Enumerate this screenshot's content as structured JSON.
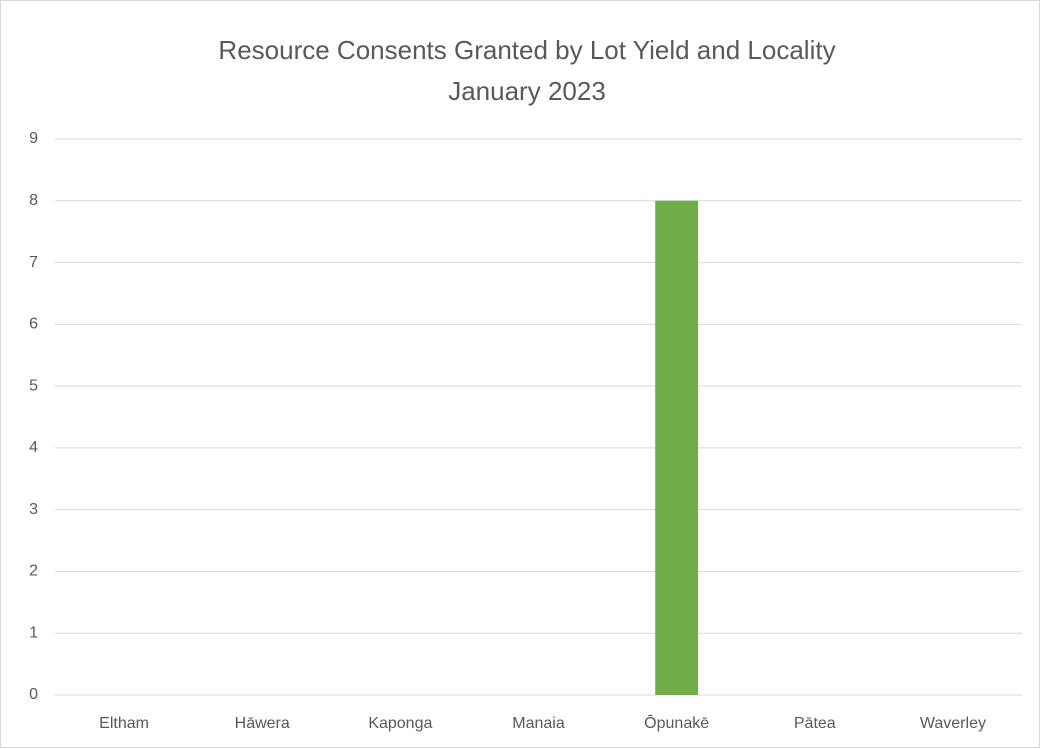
{
  "chart_data": {
    "type": "bar",
    "title": "Resource Consents Granted by Lot Yield and Locality",
    "subtitle": "January 2023",
    "categories": [
      "Eltham",
      "Hāwera",
      "Kaponga",
      "Manaia",
      "Ōpunakē",
      "Pātea",
      "Waverley"
    ],
    "values": [
      0,
      0,
      0,
      0,
      8,
      0,
      0
    ],
    "color": "#70ad47",
    "ylim": [
      0,
      9
    ],
    "yticks": [
      0,
      1,
      2,
      3,
      4,
      5,
      6,
      7,
      8,
      9
    ],
    "grid": true
  }
}
